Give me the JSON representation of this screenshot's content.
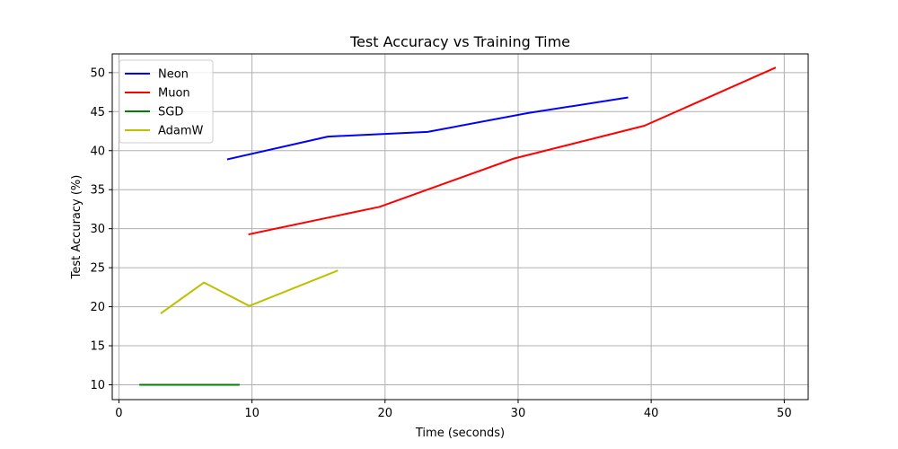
{
  "chart_data": {
    "type": "line",
    "title": "Test Accuracy vs Training Time",
    "xlabel": "Time (seconds)",
    "ylabel": "Test Accuracy (%)",
    "xlim": [
      -0.5,
      51.8
    ],
    "ylim": [
      8.1,
      52.4
    ],
    "xticks": [
      0,
      10,
      20,
      30,
      40,
      50
    ],
    "yticks": [
      10,
      15,
      20,
      25,
      30,
      35,
      40,
      45,
      50
    ],
    "grid": true,
    "legend_position": "top-left",
    "series": [
      {
        "name": "Neon",
        "color": "#0000ff",
        "x": [
          8.2,
          15.7,
          23.2,
          30.7,
          38.2
        ],
        "y": [
          38.9,
          41.8,
          42.4,
          44.8,
          46.8
        ]
      },
      {
        "name": "Muon",
        "color": "#ff0000",
        "x": [
          9.8,
          19.6,
          29.7,
          39.5,
          49.3
        ],
        "y": [
          29.3,
          32.8,
          39.0,
          43.2,
          50.6
        ]
      },
      {
        "name": "SGD",
        "color": "#008000",
        "x": [
          1.6,
          9.0
        ],
        "y": [
          10.0,
          10.0
        ]
      },
      {
        "name": "AdamW",
        "color": "#bfbf00",
        "x": [
          3.2,
          6.4,
          9.8,
          16.4
        ],
        "y": [
          19.2,
          23.1,
          20.1,
          24.6
        ]
      }
    ]
  }
}
